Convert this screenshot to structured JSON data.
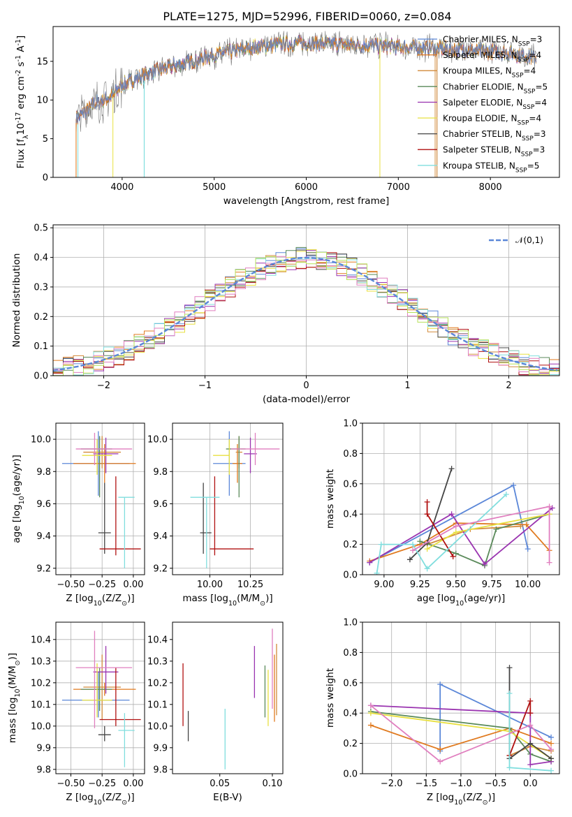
{
  "figure_title": "PLATE=1275, MJD=52996, FIBERID=0060, z=0.084",
  "colors": {
    "Chabrier MILES": "#5b87d8",
    "Salpeter MILES": "#e07a1f",
    "Kroupa MILES": "#d28a3a",
    "Chabrier ELODIE": "#5a8a5a",
    "Salpeter ELODIE": "#9a34b0",
    "Kroupa ELODIE": "#e8e040",
    "Chabrier STELIB": "#444444",
    "Salpeter STELIB": "#b01010",
    "Kroupa STELIB": "#80dede",
    "pink": "#e07fbf",
    "lime": "#b6e05a",
    "normal_curve": "#5b87d8"
  },
  "chart_data": [
    {
      "id": "spectrum",
      "type": "line",
      "xlabel": "wavelength [Angstrom, rest frame]",
      "ylabel": "Flux [f$_\\lambda$10$^{-17}$ erg cm$^{-2}$ s$^{-1}$ A$^{-1}$]",
      "xlim": [
        3250,
        8750
      ],
      "ylim": [
        0,
        19.5
      ],
      "xticks": [
        4000,
        5000,
        6000,
        7000,
        8000
      ],
      "yticks": [
        0,
        5,
        10,
        15
      ],
      "grid": false,
      "legend_position": "right",
      "continuum_x": [
        3500,
        3700,
        3900,
        4000,
        4300,
        4600,
        5000,
        5400,
        5800,
        6200,
        6600,
        7000,
        7400,
        7800,
        8200,
        8500
      ],
      "continuum_y": [
        7.5,
        9.5,
        10.5,
        12.0,
        13.5,
        14.5,
        15.8,
        16.8,
        17.3,
        17.3,
        17.1,
        16.9,
        16.7,
        16.4,
        16.1,
        15.4
      ],
      "series": [
        {
          "name": "Chabrier MILES, N$_{SSP}$=3",
          "legend_parts": [
            "Chabrier MILES, N",
            "SSP",
            "=3"
          ]
        },
        {
          "name": "Salpeter MILES, N$_{SSP}$=4",
          "legend_parts": [
            "Salpeter MILES, N",
            "SSP",
            "=4"
          ]
        },
        {
          "name": "Kroupa MILES, N$_{SSP}$=4",
          "legend_parts": [
            "Kroupa MILES, N",
            "SSP",
            "=4"
          ]
        },
        {
          "name": "Chabrier ELODIE, N$_{SSP}$=5",
          "legend_parts": [
            "Chabrier ELODIE, N",
            "SSP",
            "=5"
          ]
        },
        {
          "name": "Salpeter ELODIE, N$_{SSP}$=4",
          "legend_parts": [
            "Salpeter ELODIE, N",
            "SSP",
            "=4"
          ]
        },
        {
          "name": "Kroupa ELODIE, N$_{SSP}$=4",
          "legend_parts": [
            "Kroupa ELODIE, N",
            "SSP",
            "=4"
          ]
        },
        {
          "name": "Chabrier STELIB, N$_{SSP}$=3",
          "legend_parts": [
            "Chabrier STELIB, N",
            "SSP",
            "=3"
          ]
        },
        {
          "name": "Salpeter STELIB, N$_{SSP}$=3",
          "legend_parts": [
            "Salpeter STELIB, N",
            "SSP",
            "=3"
          ]
        },
        {
          "name": "Kroupa STELIB, N$_{SSP}$=5",
          "legend_parts": [
            "Kroupa STELIB, N",
            "SSP",
            "=5"
          ]
        }
      ]
    },
    {
      "id": "residuals",
      "type": "line",
      "xlabel": "(data-model)/error",
      "ylabel": "Normed distribution",
      "xlim": [
        -2.5,
        2.5
      ],
      "ylim": [
        0,
        0.51
      ],
      "xticks": [
        -2,
        -1,
        0,
        1,
        2
      ],
      "yticks": [
        0.0,
        0.1,
        0.2,
        0.3,
        0.4,
        0.5
      ],
      "grid": true,
      "legend_position": "top-right",
      "legend_label": "$\\mathcal{N}(0,1)$",
      "bin_width": 0.1,
      "description_curve": "standard normal density"
    },
    {
      "id": "z_age",
      "type": "scatter",
      "xlabel": "Z [log$_{10}$(Z/Z$_\\odot$)]",
      "ylabel": "age  [log$_{10}$(age/yr)]",
      "xlim": [
        -0.62,
        0.09
      ],
      "ylim": [
        9.16,
        10.1
      ],
      "xticks": [
        -0.5,
        -0.25,
        0.0
      ],
      "yticks": [
        9.2,
        9.4,
        9.6,
        9.8,
        10.0
      ],
      "grid": true,
      "points": [
        {
          "s": "Chabrier MILES",
          "x": -0.28,
          "xerr": [
            0.29,
            0.25
          ],
          "y": 9.85,
          "yerr": [
            0.2,
            0.2
          ]
        },
        {
          "s": "Salpeter MILES",
          "x": -0.23,
          "xerr": [
            0.25,
            0.25
          ],
          "y": 9.85,
          "yerr": [
            0.12,
            0.12
          ]
        },
        {
          "s": "Kroupa MILES",
          "x": -0.25,
          "xerr": [
            0.15,
            0.15
          ],
          "y": 9.92,
          "yerr": [
            0.1,
            0.1
          ]
        },
        {
          "s": "Chabrier ELODIE",
          "x": -0.27,
          "xerr": [
            0.15,
            0.1
          ],
          "y": 9.94,
          "yerr": [
            0.3,
            0.08
          ]
        },
        {
          "s": "Salpeter ELODIE",
          "x": -0.22,
          "xerr": [
            0.1,
            0.1
          ],
          "y": 9.91,
          "yerr": [
            0.12,
            0.1
          ]
        },
        {
          "s": "Kroupa ELODIE",
          "x": -0.29,
          "xerr": [
            0.12,
            0.12
          ],
          "y": 9.9,
          "yerr": [
            0.12,
            0.1
          ]
        },
        {
          "s": "Chabrier STELIB",
          "x": -0.23,
          "xerr": [
            0.05,
            0.05
          ],
          "y": 9.42,
          "yerr": [
            0.13,
            0.31
          ]
        },
        {
          "s": "Salpeter STELIB",
          "x": -0.14,
          "xerr": [
            0.13,
            0.2
          ],
          "y": 9.32,
          "yerr": [
            0.04,
            0.45
          ]
        },
        {
          "s": "Kroupa STELIB",
          "x": -0.07,
          "xerr": [
            0.05,
            0.08
          ],
          "y": 9.64,
          "yerr": [
            0.44,
            0.0
          ]
        },
        {
          "s": "pink",
          "x": -0.31,
          "xerr": [
            0.15,
            0.3
          ],
          "y": 9.94,
          "yerr": [
            0.1,
            0.1
          ]
        }
      ]
    },
    {
      "id": "mass_age",
      "type": "scatter",
      "xlabel": "mass [log$_{10}$(M/M$_\\odot$)]",
      "ylabel": "",
      "xlim": [
        9.77,
        10.45
      ],
      "ylim": [
        9.16,
        10.1
      ],
      "xticks": [
        10.0,
        10.25
      ],
      "yticks": [
        9.2,
        9.4,
        9.6,
        9.8,
        10.0
      ],
      "grid": true,
      "points": [
        {
          "s": "Chabrier MILES",
          "x": 10.12,
          "xerr": [
            0.1,
            0.1
          ],
          "y": 9.85,
          "yerr": [
            0.2,
            0.2
          ]
        },
        {
          "s": "Salpeter MILES",
          "x": 10.17,
          "xerr": [
            0.03,
            0.03
          ],
          "y": 9.85,
          "yerr": [
            0.12,
            0.12
          ]
        },
        {
          "s": "Kroupa MILES",
          "x": 10.18,
          "xerr": [
            0.02,
            0.02
          ],
          "y": 9.92,
          "yerr": [
            0.1,
            0.1
          ]
        },
        {
          "s": "Chabrier ELODIE",
          "x": 10.18,
          "xerr": [
            0.08,
            0.04
          ],
          "y": 9.94,
          "yerr": [
            0.3,
            0.08
          ]
        },
        {
          "s": "Salpeter ELODIE",
          "x": 10.25,
          "xerr": [
            0.04,
            0.04
          ],
          "y": 9.91,
          "yerr": [
            0.12,
            0.1
          ]
        },
        {
          "s": "Kroupa ELODIE",
          "x": 10.12,
          "xerr": [
            0.1,
            0.0
          ],
          "y": 9.9,
          "yerr": [
            0.12,
            0.1
          ]
        },
        {
          "s": "Chabrier STELIB",
          "x": 9.96,
          "xerr": [
            0.02,
            0.05
          ],
          "y": 9.42,
          "yerr": [
            0.13,
            0.31
          ]
        },
        {
          "s": "Salpeter STELIB",
          "x": 10.03,
          "xerr": [
            0.03,
            0.24
          ],
          "y": 9.32,
          "yerr": [
            0.04,
            0.45
          ]
        },
        {
          "s": "Kroupa STELIB",
          "x": 9.98,
          "xerr": [
            0.1,
            0.08
          ],
          "y": 9.64,
          "yerr": [
            0.44,
            0.0
          ]
        },
        {
          "s": "pink",
          "x": 10.28,
          "xerr": [
            0.15,
            0.15
          ],
          "y": 9.94,
          "yerr": [
            0.1,
            0.1
          ]
        }
      ]
    },
    {
      "id": "age_weight",
      "type": "line",
      "xlabel": "age  [log$_{10}$(age/yr)]",
      "ylabel": "mass weight",
      "xlim": [
        8.85,
        10.22
      ],
      "ylim": [
        0,
        1.0
      ],
      "xticks": [
        9.0,
        9.25,
        9.5,
        9.75,
        10.0
      ],
      "yticks": [
        0.0,
        0.2,
        0.4,
        0.6,
        0.8,
        1.0
      ],
      "grid": true,
      "series": [
        {
          "s": "Chabrier MILES",
          "x": [
            8.9,
            9.9,
            10.0
          ],
          "y": [
            0.08,
            0.59,
            0.17
          ]
        },
        {
          "s": "Salpeter MILES",
          "x": [
            8.9,
            9.25,
            9.5,
            9.99,
            10.15
          ],
          "y": [
            0.09,
            0.2,
            0.34,
            0.33,
            0.16
          ]
        },
        {
          "s": "Kroupa MILES",
          "x": [
            9.3,
            9.6,
            9.95
          ],
          "y": [
            0.2,
            0.3,
            0.32
          ]
        },
        {
          "s": "Chabrier ELODIE",
          "x": [
            9.25,
            9.5,
            9.7,
            9.78,
            10.15
          ],
          "y": [
            0.22,
            0.14,
            0.06,
            0.3,
            0.4
          ]
        },
        {
          "s": "Salpeter ELODIE",
          "x": [
            8.9,
            9.47,
            9.7,
            10.17
          ],
          "y": [
            0.08,
            0.4,
            0.07,
            0.44
          ]
        },
        {
          "s": "Kroupa ELODIE",
          "x": [
            9.3,
            9.5,
            10.15
          ],
          "y": [
            0.17,
            0.28,
            0.4
          ]
        },
        {
          "s": "Chabrier STELIB",
          "x": [
            9.18,
            9.3,
            9.47
          ],
          "y": [
            0.1,
            0.21,
            0.7
          ]
        },
        {
          "s": "Salpeter STELIB",
          "x": [
            9.3,
            9.3,
            9.48
          ],
          "y": [
            0.48,
            0.4,
            0.12
          ]
        },
        {
          "s": "Kroupa STELIB",
          "x": [
            8.95,
            8.98,
            9.2,
            9.3,
            9.85
          ],
          "y": [
            0.01,
            0.2,
            0.2,
            0.04,
            0.53
          ]
        },
        {
          "s": "pink",
          "x": [
            9.2,
            9.5,
            10.15,
            10.15
          ],
          "y": [
            0.16,
            0.32,
            0.45,
            0.08
          ]
        }
      ]
    },
    {
      "id": "z_mass",
      "type": "scatter",
      "xlabel": "Z [log$_{10}$(Z/Z$_\\odot$)]",
      "ylabel": "mass [log$_{10}$(M/M$_\\odot$)]",
      "xlim": [
        -0.62,
        0.09
      ],
      "ylim": [
        9.78,
        10.48
      ],
      "xticks": [
        -0.5,
        -0.25,
        0.0
      ],
      "yticks": [
        9.8,
        9.9,
        10.0,
        10.1,
        10.2,
        10.3,
        10.4
      ],
      "grid": true,
      "points": [
        {
          "s": "Chabrier MILES",
          "x": -0.28,
          "xerr": [
            0.29,
            0.25
          ],
          "y": 10.12,
          "yerr": [
            0.08,
            0.13
          ]
        },
        {
          "s": "Salpeter MILES",
          "x": -0.23,
          "xerr": [
            0.25,
            0.25
          ],
          "y": 10.17,
          "yerr": [
            0.03,
            0.03
          ]
        },
        {
          "s": "Kroupa MILES",
          "x": -0.25,
          "xerr": [
            0.15,
            0.15
          ],
          "y": 10.18,
          "yerr": [
            0.15,
            0.15
          ]
        },
        {
          "s": "Chabrier ELODIE",
          "x": -0.27,
          "xerr": [
            0.15,
            0.1
          ],
          "y": 10.17,
          "yerr": [
            0.1,
            0.1
          ]
        },
        {
          "s": "Salpeter ELODIE",
          "x": -0.22,
          "xerr": [
            0.1,
            0.1
          ],
          "y": 10.25,
          "yerr": [
            0.1,
            0.12
          ]
        },
        {
          "s": "Kroupa ELODIE",
          "x": -0.29,
          "xerr": [
            0.12,
            0.12
          ],
          "y": 10.12,
          "yerr": [
            0.08,
            0.17
          ]
        },
        {
          "s": "Chabrier STELIB",
          "x": -0.23,
          "xerr": [
            0.05,
            0.05
          ],
          "y": 9.96,
          "yerr": [
            0.03,
            0.04
          ]
        },
        {
          "s": "Salpeter STELIB",
          "x": -0.14,
          "xerr": [
            0.13,
            0.2
          ],
          "y": 10.03,
          "yerr": [
            0.03,
            0.24
          ]
        },
        {
          "s": "Kroupa STELIB",
          "x": -0.07,
          "xerr": [
            0.05,
            0.08
          ],
          "y": 9.98,
          "yerr": [
            0.17,
            0.08
          ]
        },
        {
          "s": "pink",
          "x": -0.31,
          "xerr": [
            0.15,
            0.3
          ],
          "y": 10.27,
          "yerr": [
            0.28,
            0.17
          ]
        }
      ]
    },
    {
      "id": "ebv_mass",
      "type": "scatter",
      "xlabel": "E(B-V)",
      "ylabel": "",
      "xlim": [
        0.005,
        0.11
      ],
      "ylim": [
        9.78,
        10.48
      ],
      "xticks": [
        0.05,
        0.1
      ],
      "yticks": [
        9.8,
        9.9,
        10.0,
        10.1,
        10.2,
        10.3,
        10.4
      ],
      "grid": false,
      "bars": [
        {
          "s": "Salpeter STELIB",
          "x": 0.015,
          "y0": 10.0,
          "y1": 10.29
        },
        {
          "s": "Chabrier STELIB",
          "x": 0.02,
          "y0": 9.93,
          "y1": 10.07
        },
        {
          "s": "Kroupa STELIB",
          "x": 0.055,
          "y0": 9.8,
          "y1": 10.08
        },
        {
          "s": "Salpeter ELODIE",
          "x": 0.083,
          "y0": 10.13,
          "y1": 10.37
        },
        {
          "s": "Chabrier ELODIE",
          "x": 0.093,
          "y0": 10.04,
          "y1": 10.28
        },
        {
          "s": "Kroupa ELODIE",
          "x": 0.096,
          "y0": 10.0,
          "y1": 10.26
        },
        {
          "s": "pink",
          "x": 0.1,
          "y0": 10.08,
          "y1": 10.45
        },
        {
          "s": "Salpeter MILES",
          "x": 0.102,
          "y0": 10.02,
          "y1": 10.33
        },
        {
          "s": "Kroupa MILES",
          "x": 0.104,
          "y0": 10.05,
          "y1": 10.38
        }
      ]
    },
    {
      "id": "z_weight",
      "type": "line",
      "xlabel": "Z [log$_{10}$(Z/Z$_\\odot$)]",
      "ylabel": "mass weight",
      "xlim": [
        -2.42,
        0.42
      ],
      "ylim": [
        0,
        1.0
      ],
      "xticks": [
        -2.0,
        -1.5,
        -1.0,
        -0.5,
        0.0
      ],
      "yticks": [
        0.0,
        0.2,
        0.4,
        0.6,
        0.8,
        1.0
      ],
      "grid": true,
      "series": [
        {
          "s": "Chabrier MILES",
          "x": [
            -1.3,
            -1.3,
            0.3
          ],
          "y": [
            0.15,
            0.59,
            0.24
          ]
        },
        {
          "s": "Salpeter MILES",
          "x": [
            -2.3,
            -1.3,
            -0.3,
            0.3
          ],
          "y": [
            0.32,
            0.16,
            0.3,
            0.2
          ]
        },
        {
          "s": "Kroupa MILES",
          "x": [
            -0.3,
            0.0,
            0.3
          ],
          "y": [
            0.12,
            0.18,
            0.15
          ]
        },
        {
          "s": "Chabrier ELODIE",
          "x": [
            -2.3,
            -0.3,
            0.0,
            0.3
          ],
          "y": [
            0.41,
            0.3,
            0.13,
            0.08
          ]
        },
        {
          "s": "Salpeter ELODIE",
          "x": [
            -2.3,
            0.0,
            0.0,
            0.3
          ],
          "y": [
            0.45,
            0.4,
            0.06,
            0.08
          ]
        },
        {
          "s": "Kroupa ELODIE",
          "x": [
            -2.3,
            -0.3,
            0.3
          ],
          "y": [
            0.4,
            0.28,
            0.1
          ]
        },
        {
          "s": "Chabrier STELIB",
          "x": [
            -0.3,
            -0.3,
            0.0,
            0.3
          ],
          "y": [
            0.7,
            0.1,
            0.2,
            0.1
          ]
        },
        {
          "s": "Salpeter STELIB",
          "x": [
            -0.3,
            0.0,
            0.0
          ],
          "y": [
            0.12,
            0.48,
            0.4
          ]
        },
        {
          "s": "Kroupa STELIB",
          "x": [
            -0.3,
            -0.3,
            0.3
          ],
          "y": [
            0.53,
            0.04,
            0.02
          ]
        },
        {
          "s": "pink",
          "x": [
            -2.3,
            -1.3,
            0.0,
            0.3
          ],
          "y": [
            0.45,
            0.08,
            0.32,
            0.16
          ]
        }
      ]
    }
  ]
}
